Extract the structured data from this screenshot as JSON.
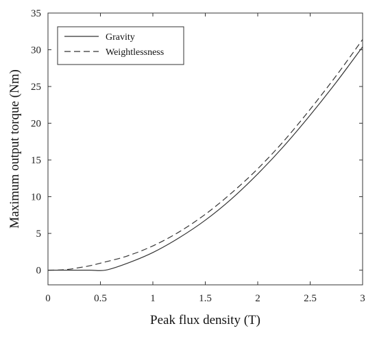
{
  "chart_data": {
    "type": "line",
    "title": "",
    "xlabel": "Peak flux density (T)",
    "ylabel": "Maximum output torque (Nm)",
    "xlim": [
      0,
      3
    ],
    "ylim": [
      -2,
      35
    ],
    "x_ticks": [
      "0",
      "0.5",
      "1",
      "1.5",
      "2",
      "2.5",
      "3"
    ],
    "x_tick_values": [
      0,
      0.5,
      1,
      1.5,
      2,
      2.5,
      3
    ],
    "y_ticks": [
      "0",
      "5",
      "10",
      "15",
      "20",
      "25",
      "30",
      "35"
    ],
    "y_tick_values": [
      0,
      5,
      10,
      15,
      20,
      25,
      30,
      35
    ],
    "grid": false,
    "legend_position": "top-left",
    "series": [
      {
        "name": "Gravity",
        "style": "solid",
        "color": "#333333",
        "x": [
          0,
          0.2,
          0.4,
          0.55,
          0.75,
          1.0,
          1.25,
          1.5,
          1.75,
          2.0,
          2.25,
          2.5,
          2.75,
          3.0
        ],
        "y": [
          0,
          0,
          0,
          0,
          0.9,
          2.4,
          4.4,
          6.8,
          9.7,
          13.1,
          16.9,
          21.1,
          25.6,
          30.4
        ]
      },
      {
        "name": "Weightlessness",
        "style": "dashed",
        "color": "#333333",
        "x": [
          0,
          0.1,
          0.2,
          0.3,
          0.4,
          0.5,
          0.75,
          1.0,
          1.25,
          1.5,
          1.75,
          2.0,
          2.25,
          2.5,
          2.75,
          3.0
        ],
        "y": [
          0,
          0.02,
          0.12,
          0.35,
          0.6,
          0.95,
          1.9,
          3.3,
          5.2,
          7.6,
          10.5,
          13.8,
          17.6,
          21.9,
          26.5,
          31.4
        ]
      }
    ]
  }
}
